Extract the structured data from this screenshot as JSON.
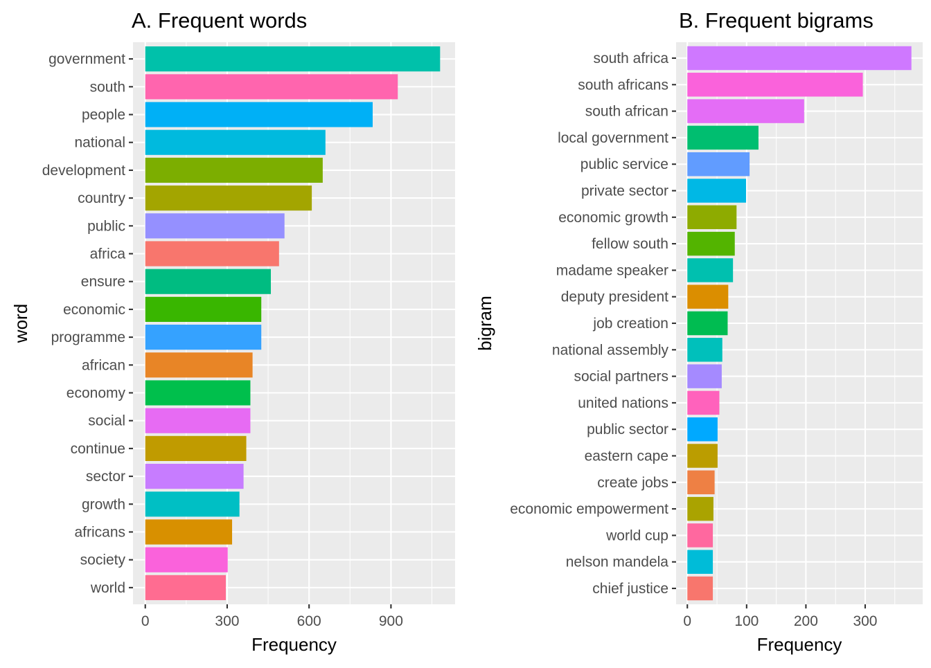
{
  "chart_data": [
    {
      "type": "bar",
      "orientation": "horizontal",
      "title": "A. Frequent words",
      "xlabel": "Frequency",
      "ylabel": "word",
      "xlim": [
        -45,
        1135
      ],
      "xticks": [
        0,
        300,
        600,
        900
      ],
      "xticklabels": [
        "0",
        "300",
        "600",
        "900"
      ],
      "grid": true,
      "legend": "none",
      "categories": [
        "government",
        "south",
        "people",
        "national",
        "development",
        "country",
        "public",
        "africa",
        "ensure",
        "economic",
        "programme",
        "african",
        "economy",
        "social",
        "continue",
        "sector",
        "growth",
        "africans",
        "society",
        "world"
      ],
      "values": [
        1080,
        925,
        833,
        660,
        650,
        610,
        510,
        490,
        460,
        425,
        425,
        393,
        385,
        385,
        370,
        360,
        345,
        318,
        302,
        295
      ],
      "colors": [
        "#00C1AA",
        "#FF65AE",
        "#00B0F6",
        "#00BADE",
        "#7CAE00",
        "#A3A500",
        "#9590FF",
        "#F8766D",
        "#00BC81",
        "#39B600",
        "#35A2FF",
        "#E88526",
        "#00BF4C",
        "#E76BF3",
        "#C09B00",
        "#C77CFF",
        "#00BFC4",
        "#D89000",
        "#FA62DB",
        "#FF6C91"
      ]
    },
    {
      "type": "bar",
      "orientation": "horizontal",
      "title": "B. Frequent bigrams",
      "xlabel": "Frequency",
      "ylabel": "bigram",
      "xlim": [
        -19,
        397
      ],
      "xticks": [
        0,
        100,
        200,
        300
      ],
      "xticklabels": [
        "0",
        "100",
        "200",
        "300"
      ],
      "grid": true,
      "legend": "none",
      "categories": [
        "south africa",
        "south africans",
        "south african",
        "local government",
        "public service",
        "private sector",
        "economic growth",
        "fellow south",
        "madame speaker",
        "deputy president",
        "job creation",
        "national assembly",
        "social partners",
        "united nations",
        "public sector",
        "eastern cape",
        "create jobs",
        "economic empowerment",
        "world cup",
        "nelson mandela",
        "chief justice"
      ],
      "values": [
        378,
        296,
        197,
        120,
        105,
        99,
        83,
        80,
        77,
        69,
        68,
        59,
        58,
        54,
        51,
        51,
        46,
        44,
        43,
        43,
        43
      ],
      "colors": [
        "#CF78FF",
        "#FA62DB",
        "#E46DF6",
        "#00BE70",
        "#619CFF",
        "#00B8E5",
        "#8EAB00",
        "#53B400",
        "#00C0AF",
        "#DB8E00",
        "#00BC51",
        "#00C0BB",
        "#A58AFF",
        "#FF62BC",
        "#00A9FF",
        "#BB9D00",
        "#EE8044",
        "#AAA300",
        "#FF689F",
        "#00BCD8",
        "#F8766D"
      ]
    }
  ]
}
